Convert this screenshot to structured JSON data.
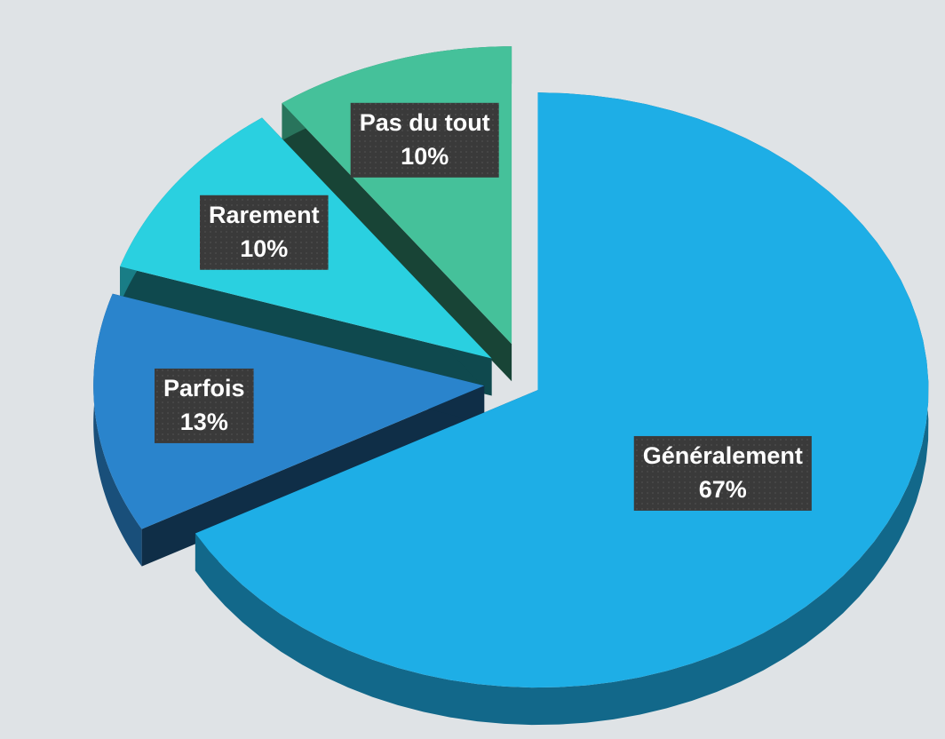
{
  "chart_data": {
    "type": "pie",
    "categories": [
      "Généralement",
      "Parfois",
      "Rarement",
      "Pas du tout"
    ],
    "values": [
      67,
      13,
      10,
      10
    ],
    "value_labels": [
      "67%",
      "13%",
      "10%",
      "10%"
    ],
    "colors": [
      "#1eaee6",
      "#2a84cc",
      "#2ad0e0",
      "#45c19a"
    ]
  }
}
